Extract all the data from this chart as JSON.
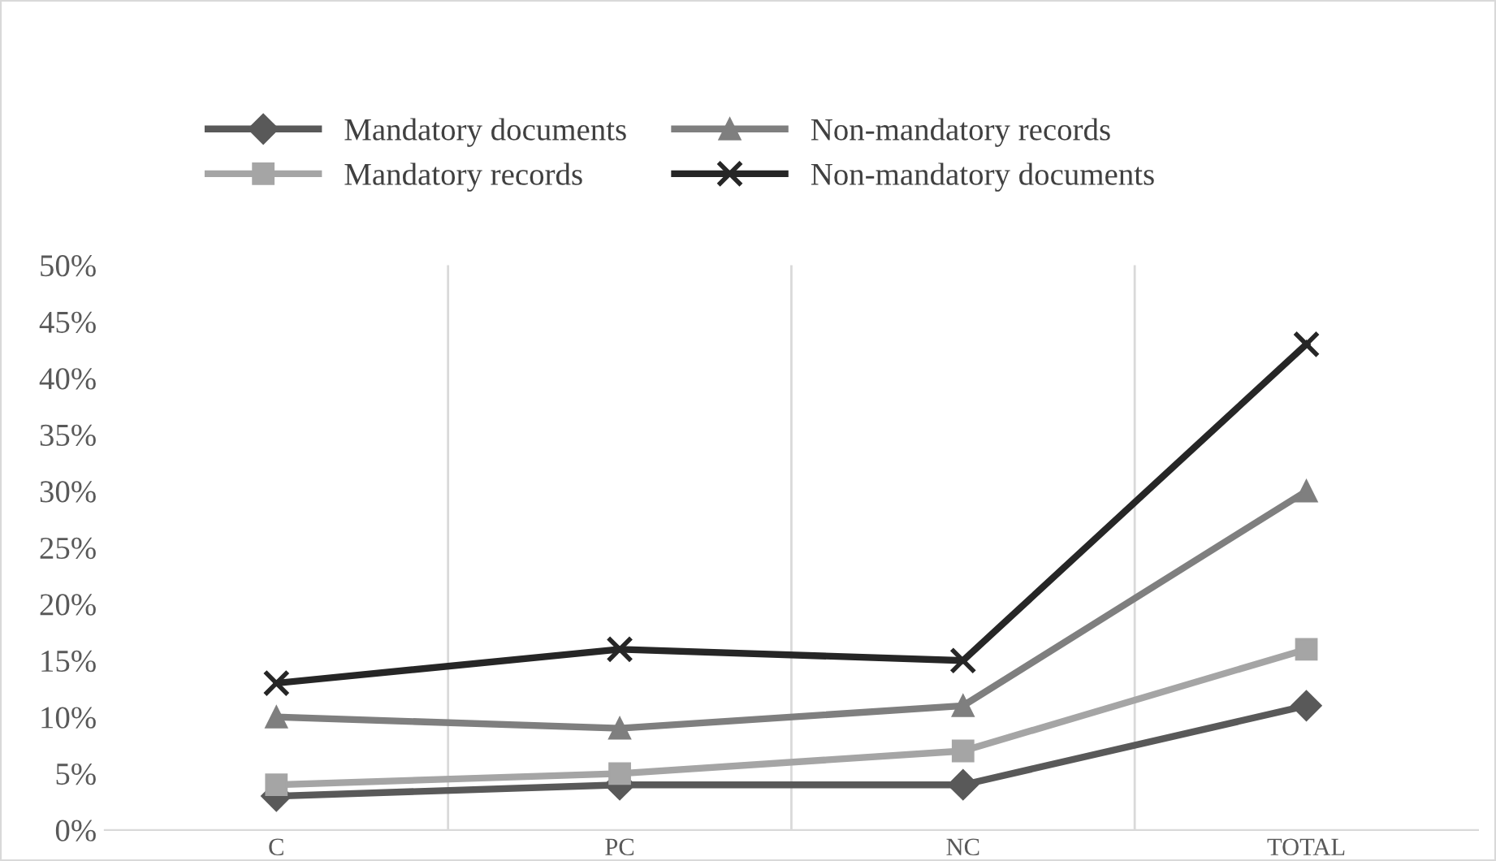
{
  "chart_data": {
    "type": "line",
    "categories": [
      "C",
      "PC",
      "NC",
      "TOTAL"
    ],
    "series": [
      {
        "name": "Mandatory documents",
        "color": "#595959",
        "marker": "diamond",
        "values": [
          3,
          4,
          4,
          11
        ]
      },
      {
        "name": "Mandatory records",
        "color": "#a5a5a5",
        "marker": "square",
        "values": [
          4,
          5,
          7,
          16
        ]
      },
      {
        "name": "Non-mandatory records",
        "color": "#7f7f7f",
        "marker": "triangle",
        "values": [
          10,
          9,
          11,
          30
        ]
      },
      {
        "name": "Non-mandatory documents",
        "color": "#262626",
        "marker": "cross",
        "values": [
          13,
          16,
          15,
          43
        ]
      }
    ],
    "ylim": [
      0,
      50
    ],
    "yticks": [
      {
        "value": 0,
        "label": "0%"
      },
      {
        "value": 5,
        "label": "5%"
      },
      {
        "value": 10,
        "label": "10%"
      },
      {
        "value": 15,
        "label": "15%"
      },
      {
        "value": 20,
        "label": "20%"
      },
      {
        "value": 25,
        "label": "25%"
      },
      {
        "value": 30,
        "label": "30%"
      },
      {
        "value": 35,
        "label": "35%"
      },
      {
        "value": 40,
        "label": "40%"
      },
      {
        "value": 45,
        "label": "45%"
      },
      {
        "value": 50,
        "label": "50%"
      }
    ],
    "grid": "x",
    "legend": "top",
    "line_style": "solid"
  }
}
